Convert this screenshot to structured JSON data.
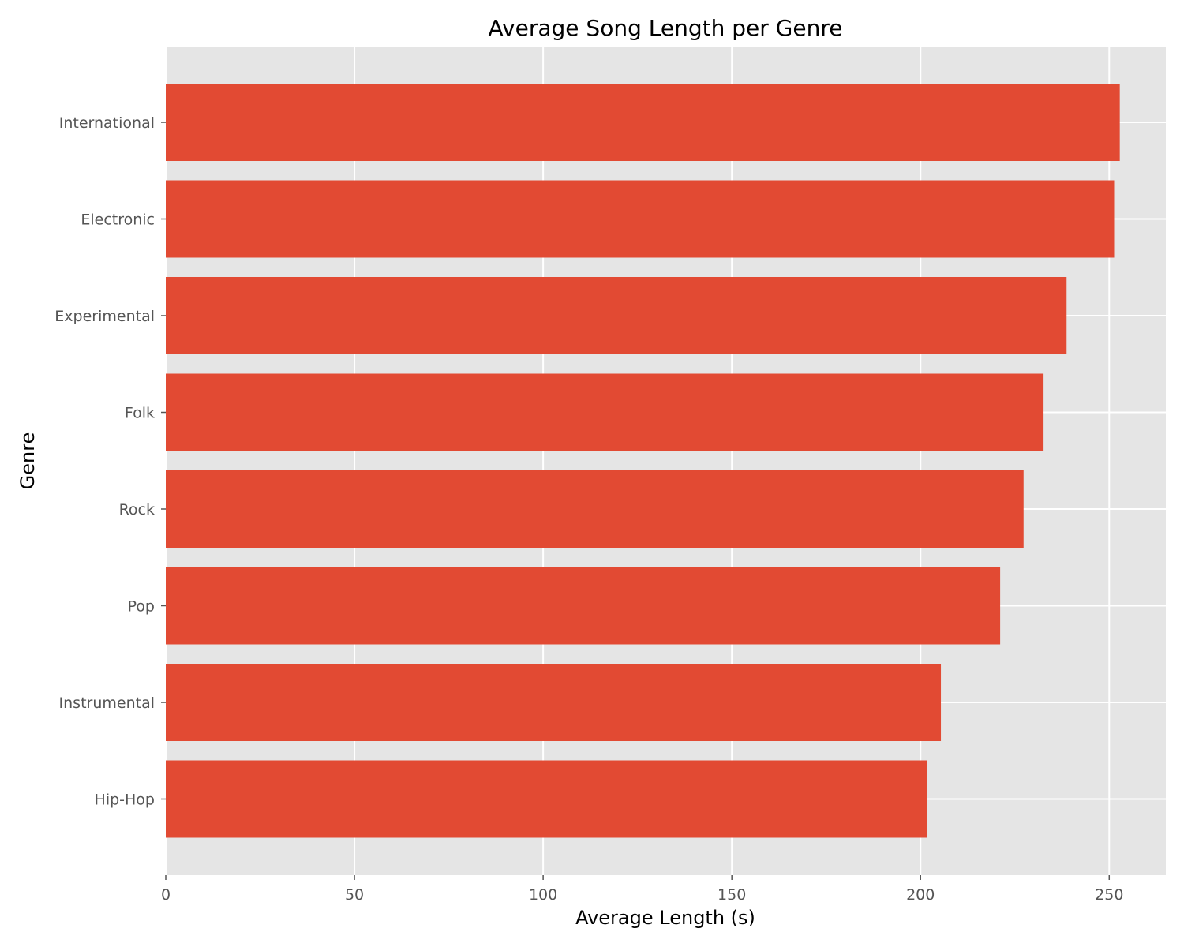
{
  "chart_data": {
    "type": "bar",
    "orientation": "horizontal",
    "title": "Average Song Length per Genre",
    "xlabel": "Average Length (s)",
    "ylabel": "Genre",
    "categories": [
      "International",
      "Electronic",
      "Experimental",
      "Folk",
      "Rock",
      "Pop",
      "Instrumental",
      "Hip-Hop"
    ],
    "values": [
      252.8,
      251.3,
      238.7,
      232.6,
      227.3,
      221.1,
      205.4,
      201.7
    ],
    "xlim": [
      0,
      265
    ],
    "xticks": [
      0,
      50,
      100,
      150,
      200,
      250
    ],
    "grid": true,
    "colors": {
      "bar": "#E24A33",
      "plot_background": "#E5E5E5",
      "grid": "#FFFFFF",
      "tick_label": "#555555"
    }
  }
}
